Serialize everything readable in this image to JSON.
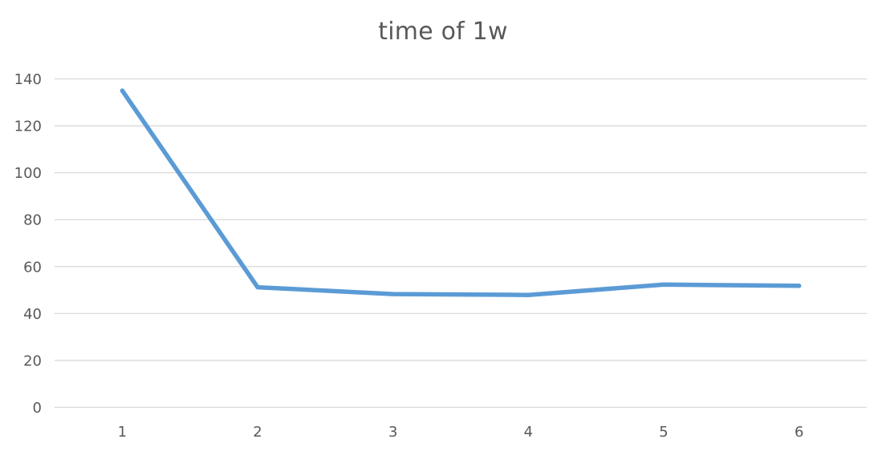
{
  "chart_data": {
    "type": "line",
    "title": "time of 1w",
    "xlabel": "",
    "ylabel": "",
    "categories": [
      "1",
      "2",
      "3",
      "4",
      "5",
      "6"
    ],
    "series": [
      {
        "values": [
          135,
          51.2,
          48.3,
          47.9,
          52.3,
          51.8
        ],
        "color": "#5b9bd5"
      }
    ],
    "ylim": [
      0,
      140
    ],
    "yticks": [
      "0",
      "20",
      "40",
      "60",
      "80",
      "100",
      "120",
      "140"
    ],
    "grid": "horizontal",
    "legend": "none"
  }
}
